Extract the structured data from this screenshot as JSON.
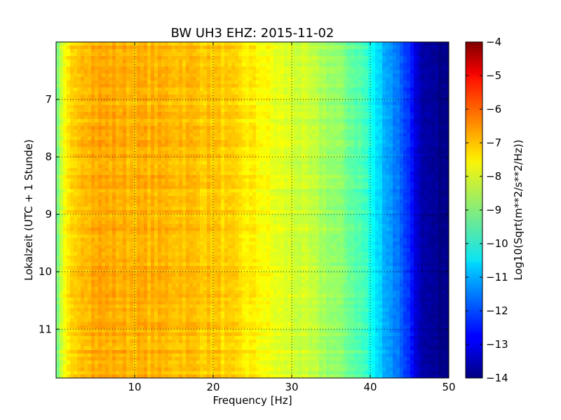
{
  "chart_data": {
    "type": "heatmap",
    "title": "BW UH3 EHZ: 2015-11-02",
    "xlabel": "Frequency [Hz]",
    "ylabel": "Lokalzeit (UTC + 1 Stunde)",
    "xlim": [
      0,
      50
    ],
    "ylim": [
      11.85,
      6.0
    ],
    "x_ticks": [
      10,
      20,
      30,
      40,
      50
    ],
    "y_ticks": [
      7,
      8,
      9,
      10,
      11
    ],
    "grid": true,
    "colormap": "jet",
    "colorbar": {
      "label": "Log10(Sqrt(m**2/s**2/Hz))",
      "range": [
        -14,
        -4
      ],
      "ticks": [
        -4,
        -5,
        -6,
        -7,
        -8,
        -9,
        -10,
        -11,
        -12,
        -13,
        -14
      ]
    },
    "mean_level_by_frequency": {
      "frequency": [
        0,
        0.5,
        1,
        2,
        3,
        5,
        10,
        15,
        20,
        22,
        24,
        26,
        27,
        28,
        30,
        32,
        34,
        36,
        38,
        39.5,
        40.5,
        42,
        44,
        45.5,
        46.5,
        50
      ],
      "level": [
        -9.5,
        -8.6,
        -8.0,
        -7.4,
        -7.0,
        -6.9,
        -7.0,
        -7.05,
        -7.2,
        -7.35,
        -7.55,
        -7.7,
        -7.85,
        -8.0,
        -8.15,
        -8.35,
        -8.6,
        -8.9,
        -9.3,
        -9.7,
        -10.4,
        -11.0,
        -11.8,
        -12.7,
        -13.7,
        -14.0
      ]
    }
  }
}
